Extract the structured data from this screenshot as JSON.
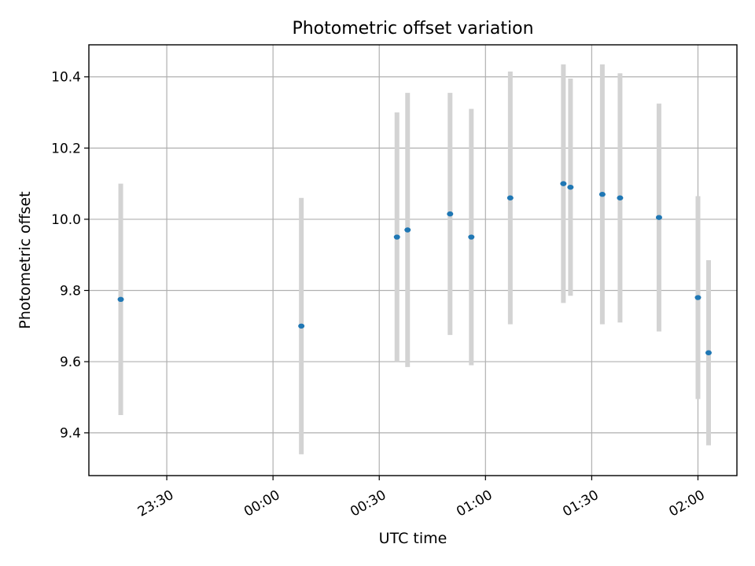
{
  "chart_data": {
    "type": "scatter",
    "title": "Photometric offset variation",
    "xlabel": "UTC time",
    "ylabel": "Photometric offset",
    "xlim": [
      "23:08",
      "02:11"
    ],
    "ylim": [
      9.28,
      10.49
    ],
    "x_ticks": [
      "23:30",
      "00:00",
      "00:30",
      "01:00",
      "01:30",
      "02:00"
    ],
    "y_ticks": [
      9.4,
      9.6,
      9.8,
      10.0,
      10.2,
      10.4
    ],
    "grid": true,
    "colors": {
      "point": "#1f77b4",
      "errorbar": "#d3d3d3"
    },
    "series": [
      {
        "x": [
          "23:17",
          "00:08",
          "00:35",
          "00:38",
          "00:50",
          "00:56",
          "01:07",
          "01:22",
          "01:24",
          "01:33",
          "01:38",
          "01:49",
          "02:00",
          "02:03"
        ],
        "y": [
          9.775,
          9.7,
          9.95,
          9.97,
          10.015,
          9.95,
          10.06,
          10.1,
          10.09,
          10.07,
          10.06,
          10.005,
          9.78,
          9.625
        ],
        "yerr": [
          0.325,
          0.36,
          0.35,
          0.385,
          0.34,
          0.36,
          0.355,
          0.335,
          0.305,
          0.365,
          0.35,
          0.32,
          0.285,
          0.26
        ]
      }
    ]
  }
}
